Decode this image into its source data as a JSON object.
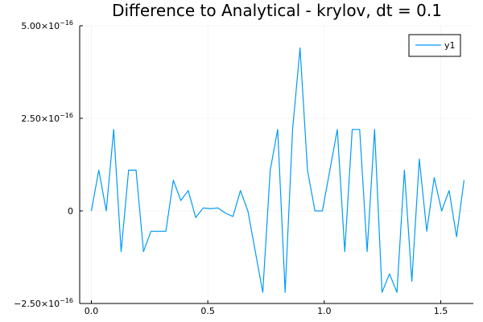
{
  "chart_data": {
    "type": "line",
    "title": "Difference to Analytical - krylov, dt = 0.1",
    "xlabel": "",
    "ylabel": "",
    "xlim": [
      -0.05,
      1.64
    ],
    "ylim": [
      -2.5e-16,
      5e-16
    ],
    "grid": true,
    "legend_position": "top-right",
    "x_ticks": [
      {
        "value": 0.0,
        "label": "0.0"
      },
      {
        "value": 0.5,
        "label": "0.5"
      },
      {
        "value": 1.0,
        "label": "1.0"
      },
      {
        "value": 1.5,
        "label": "1.5"
      }
    ],
    "y_ticks": [
      {
        "value": -2.5e-16,
        "mantissa": "−2.50×10",
        "exponent": "−16"
      },
      {
        "value": 0,
        "mantissa": "0",
        "exponent": ""
      },
      {
        "value": 2.5e-16,
        "mantissa": "2.50×10",
        "exponent": "−16"
      },
      {
        "value": 5e-16,
        "mantissa": "5.00×10",
        "exponent": "−16"
      }
    ],
    "series": [
      {
        "name": "y1",
        "color": "#009af9",
        "x": [
          0.0,
          0.032,
          0.064,
          0.096,
          0.128,
          0.16,
          0.192,
          0.224,
          0.256,
          0.288,
          0.32,
          0.352,
          0.384,
          0.416,
          0.448,
          0.48,
          0.512,
          0.544,
          0.576,
          0.608,
          0.64,
          0.672,
          0.704,
          0.736,
          0.768,
          0.8,
          0.832,
          0.864,
          0.896,
          0.928,
          0.96,
          0.992,
          1.024,
          1.056,
          1.088,
          1.12,
          1.152,
          1.184,
          1.216,
          1.248,
          1.28,
          1.312,
          1.344,
          1.376,
          1.408,
          1.44,
          1.472,
          1.504,
          1.536,
          1.568,
          1.6
        ],
        "values": [
          0.0,
          1.1e-16,
          0.0,
          2.2e-16,
          -1.1e-16,
          1.1e-16,
          1.1e-16,
          -1.1e-16,
          -5.5e-17,
          -5.5e-17,
          -5.5e-17,
          8.3e-17,
          2.8e-17,
          5.5e-17,
          -1.8e-17,
          8e-18,
          6e-18,
          8e-18,
          -6e-18,
          -1.5e-17,
          5.5e-17,
          0.0,
          -1.1e-16,
          -2.2e-16,
          1.1e-16,
          2.2e-16,
          -2.2e-16,
          2.2e-16,
          4.4e-16,
          1.1e-16,
          0.0,
          0.0,
          1.1e-16,
          2.2e-16,
          -1.1e-16,
          2.2e-16,
          2.2e-16,
          -1.1e-16,
          2.2e-16,
          -2.2e-16,
          -1.7e-16,
          -2.2e-16,
          1.1e-16,
          -1.9e-16,
          1.4e-16,
          -5.5e-17,
          9e-17,
          0.0,
          5.5e-17,
          -7e-17,
          8.3e-17
        ]
      }
    ]
  }
}
